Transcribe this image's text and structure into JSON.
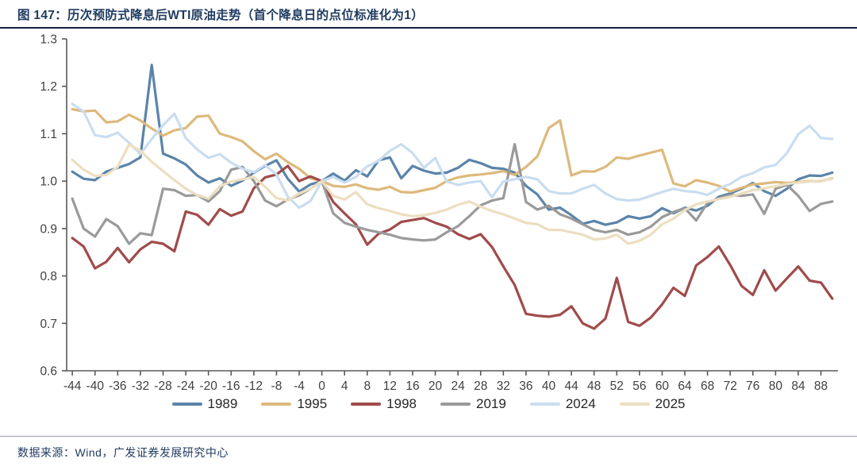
{
  "header": {
    "title": "图  147：历次预防式降息后WTI原油走势（首个降息日的点位标准化为1）"
  },
  "footer": {
    "source": "数据来源：Wind，广发证券发展研究中心"
  },
  "colors": {
    "title_navy": "#1e3a5f",
    "axis": "#595959",
    "tick_text": "#404040"
  },
  "chart_data": {
    "type": "line",
    "title": "历次预防式降息后WTI原油走势（首个降息日的点位标准化为1）",
    "xlabel": "",
    "ylabel": "",
    "xlim": [
      -45,
      91
    ],
    "ylim": [
      0.6,
      1.3
    ],
    "grid": false,
    "legend_position": "bottom",
    "yticks": [
      0.6,
      0.7,
      0.8,
      0.9,
      1.0,
      1.1,
      1.2,
      1.3
    ],
    "xticks": [
      -44,
      -40,
      -36,
      -32,
      -28,
      -24,
      -20,
      -16,
      -12,
      -8,
      -4,
      0,
      4,
      8,
      12,
      16,
      20,
      24,
      28,
      32,
      36,
      40,
      44,
      48,
      52,
      56,
      60,
      64,
      68,
      72,
      76,
      80,
      84,
      88
    ],
    "x": [
      -44,
      -42,
      -40,
      -38,
      -36,
      -34,
      -32,
      -30,
      -28,
      -26,
      -24,
      -22,
      -20,
      -18,
      -16,
      -14,
      -12,
      -10,
      -8,
      -6,
      -4,
      -2,
      0,
      2,
      4,
      6,
      8,
      10,
      12,
      14,
      16,
      18,
      20,
      22,
      24,
      26,
      28,
      30,
      32,
      34,
      36,
      38,
      40,
      42,
      44,
      46,
      48,
      50,
      52,
      54,
      56,
      58,
      60,
      62,
      64,
      66,
      68,
      70,
      72,
      74,
      76,
      78,
      80,
      82,
      84,
      86,
      88,
      90
    ],
    "series": [
      {
        "name": "1989",
        "color": "#5b84a9",
        "values": [
          1.02,
          1.005,
          1.002,
          1.02,
          1.028,
          1.036,
          1.05,
          1.245,
          1.058,
          1.048,
          1.035,
          1.012,
          0.997,
          1.006,
          0.99,
          1.001,
          1.018,
          1.032,
          1.044,
          1.005,
          0.978,
          0.993,
          1.0,
          1.016,
          1.001,
          1.023,
          1.01,
          1.044,
          1.05,
          1.006,
          1.032,
          1.022,
          1.016,
          1.018,
          1.028,
          1.045,
          1.038,
          1.028,
          1.026,
          1.018,
          0.99,
          0.972,
          0.94,
          0.944,
          0.928,
          0.91,
          0.916,
          0.908,
          0.913,
          0.926,
          0.921,
          0.926,
          0.943,
          0.932,
          0.944,
          0.938,
          0.948,
          0.967,
          0.974,
          0.984,
          0.996,
          0.979,
          0.969,
          0.984,
          1.004,
          1.012,
          1.011,
          1.018
        ]
      },
      {
        "name": "1995",
        "color": "#ddb97c",
        "values": [
          1.152,
          1.147,
          1.149,
          1.124,
          1.126,
          1.14,
          1.128,
          1.111,
          1.096,
          1.107,
          1.112,
          1.136,
          1.138,
          1.1,
          1.093,
          1.084,
          1.063,
          1.046,
          1.058,
          1.04,
          1.026,
          1.006,
          1.0,
          0.99,
          0.988,
          0.993,
          0.985,
          0.982,
          0.988,
          0.977,
          0.976,
          0.981,
          0.986,
          1.0,
          1.008,
          1.012,
          1.014,
          1.017,
          1.021,
          1.013,
          1.03,
          1.052,
          1.112,
          1.128,
          1.012,
          1.021,
          1.02,
          1.03,
          1.05,
          1.047,
          1.054,
          1.06,
          1.066,
          0.995,
          0.989,
          1.002,
          0.997,
          0.99,
          0.978,
          0.986,
          0.993,
          0.995,
          0.998,
          0.996,
          0.998,
          1.0,
          1.0,
          1.006
        ]
      },
      {
        "name": "1998",
        "color": "#a04b4b",
        "values": [
          0.88,
          0.862,
          0.816,
          0.83,
          0.859,
          0.829,
          0.856,
          0.872,
          0.868,
          0.852,
          0.936,
          0.929,
          0.908,
          0.941,
          0.927,
          0.936,
          0.985,
          1.008,
          1.014,
          1.032,
          1.0,
          1.01,
          1.0,
          0.956,
          0.932,
          0.909,
          0.866,
          0.889,
          0.898,
          0.914,
          0.918,
          0.922,
          0.912,
          0.904,
          0.888,
          0.878,
          0.888,
          0.861,
          0.82,
          0.781,
          0.72,
          0.716,
          0.714,
          0.718,
          0.736,
          0.7,
          0.689,
          0.71,
          0.796,
          0.703,
          0.695,
          0.712,
          0.74,
          0.775,
          0.758,
          0.822,
          0.84,
          0.862,
          0.823,
          0.779,
          0.76,
          0.812,
          0.769,
          0.795,
          0.82,
          0.79,
          0.786,
          0.752
        ]
      },
      {
        "name": "2019",
        "color": "#9a9a9a",
        "values": [
          0.963,
          0.9,
          0.883,
          0.92,
          0.905,
          0.868,
          0.89,
          0.886,
          0.984,
          0.981,
          0.969,
          0.971,
          0.957,
          0.979,
          1.024,
          1.03,
          1.0,
          0.959,
          0.947,
          0.961,
          0.97,
          0.984,
          1.0,
          0.932,
          0.912,
          0.904,
          0.897,
          0.892,
          0.887,
          0.88,
          0.877,
          0.875,
          0.877,
          0.892,
          0.905,
          0.926,
          0.949,
          0.959,
          0.964,
          1.078,
          0.956,
          0.94,
          0.948,
          0.93,
          0.921,
          0.909,
          0.897,
          0.892,
          0.897,
          0.887,
          0.892,
          0.904,
          0.924,
          0.935,
          0.943,
          0.917,
          0.954,
          0.964,
          0.971,
          0.969,
          0.972,
          0.931,
          0.984,
          0.992,
          0.969,
          0.937,
          0.952,
          0.957
        ]
      },
      {
        "name": "2024",
        "color": "#c9ddf0",
        "values": [
          1.163,
          1.147,
          1.097,
          1.093,
          1.102,
          1.081,
          1.057,
          1.089,
          1.118,
          1.142,
          1.091,
          1.067,
          1.049,
          1.057,
          1.039,
          1.026,
          1.019,
          1.034,
          1.014,
          0.967,
          0.944,
          0.958,
          1.0,
          1.009,
          0.997,
          1.009,
          1.031,
          1.043,
          1.064,
          1.078,
          1.059,
          1.028,
          1.049,
          0.999,
          0.992,
          0.997,
          1.0,
          0.966,
          0.999,
          1.004,
          1.009,
          1.004,
          0.979,
          0.974,
          0.974,
          0.984,
          0.992,
          0.974,
          0.962,
          0.959,
          0.961,
          0.969,
          0.977,
          0.984,
          0.979,
          0.977,
          0.971,
          0.984,
          0.994,
          1.009,
          1.017,
          1.029,
          1.034,
          1.059,
          1.099,
          1.117,
          1.091,
          1.089
        ]
      },
      {
        "name": "2025",
        "color": "#ecdec1",
        "values": [
          1.045,
          1.024,
          1.011,
          1.013,
          1.03,
          1.077,
          1.064,
          1.041,
          1.021,
          1.002,
          0.984,
          0.971,
          0.963,
          0.989,
          0.999,
          1.004,
          1.009,
          0.988,
          0.964,
          0.959,
          0.974,
          0.984,
          1.0,
          0.969,
          0.961,
          0.977,
          0.951,
          0.943,
          0.937,
          0.93,
          0.926,
          0.928,
          0.933,
          0.94,
          0.95,
          0.957,
          0.946,
          0.937,
          0.93,
          0.921,
          0.912,
          0.909,
          0.897,
          0.897,
          0.892,
          0.887,
          0.877,
          0.879,
          0.887,
          0.868,
          0.874,
          0.887,
          0.909,
          0.921,
          0.939,
          0.951,
          0.957,
          0.962,
          0.967,
          0.974,
          0.981,
          0.985,
          0.989,
          0.994,
          0.997,
          0.999,
          1.001,
          1.005
        ]
      }
    ]
  }
}
